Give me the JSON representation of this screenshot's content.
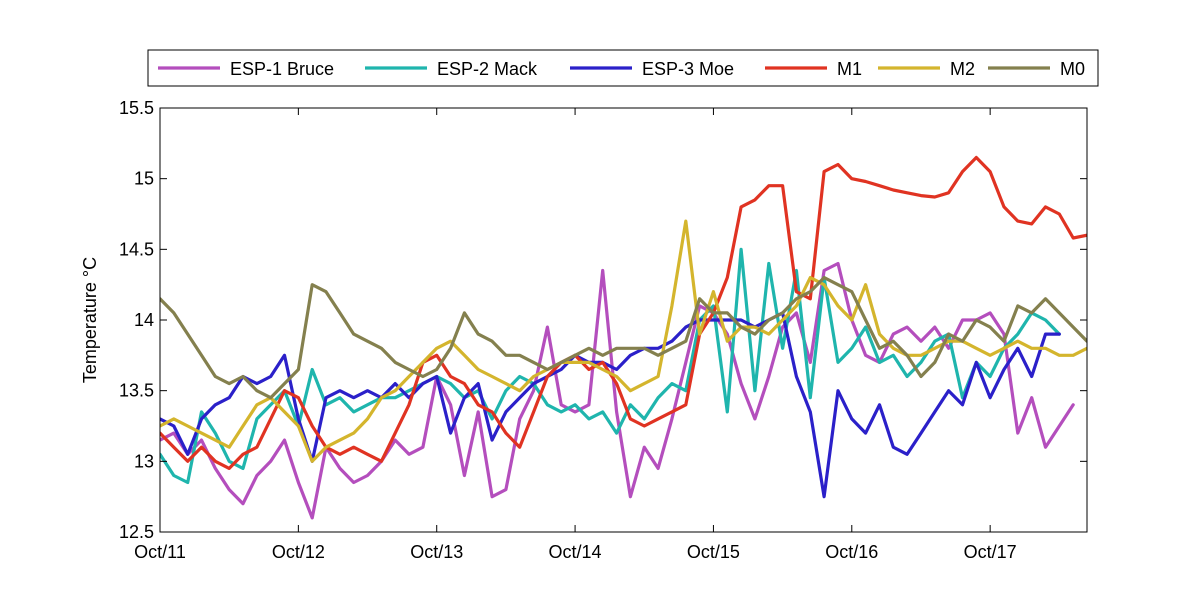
{
  "chart_data": {
    "type": "line",
    "ylabel": "Temperature °C",
    "ylim": [
      12.5,
      15.5
    ],
    "yticks": [
      "12.5",
      "13",
      "13.5",
      "14",
      "14.5",
      "15",
      "15.5"
    ],
    "x_range_days": [
      0,
      6.7
    ],
    "xtick_labels": [
      "Oct/11",
      "Oct/12",
      "Oct/13",
      "Oct/14",
      "Oct/15",
      "Oct/16",
      "Oct/17"
    ],
    "grid": false,
    "legend_position": "top",
    "series": [
      {
        "name": "ESP-1 Bruce",
        "color": "#b44ebd",
        "x": [
          0,
          0.1,
          0.2,
          0.3,
          0.4,
          0.5,
          0.6,
          0.7,
          0.8,
          0.9,
          1.0,
          1.1,
          1.2,
          1.3,
          1.4,
          1.5,
          1.6,
          1.7,
          1.8,
          1.9,
          2.0,
          2.1,
          2.2,
          2.3,
          2.4,
          2.5,
          2.6,
          2.7,
          2.8,
          2.9,
          3.0,
          3.1,
          3.2,
          3.3,
          3.4,
          3.5,
          3.6,
          3.7,
          3.8,
          3.9,
          4.0,
          4.1,
          4.2,
          4.3,
          4.4,
          4.5,
          4.6,
          4.7,
          4.8,
          4.9,
          5.0,
          5.1,
          5.2,
          5.3,
          5.4,
          5.5,
          5.6,
          5.7,
          5.8,
          5.9,
          6.0,
          6.1,
          6.2,
          6.3,
          6.4,
          6.6
        ],
        "y": [
          13.15,
          13.2,
          13.05,
          13.15,
          12.95,
          12.8,
          12.7,
          12.9,
          13.0,
          13.15,
          12.85,
          12.6,
          13.1,
          12.95,
          12.85,
          12.9,
          13.0,
          13.15,
          13.05,
          13.1,
          13.6,
          13.4,
          12.9,
          13.35,
          12.75,
          12.8,
          13.3,
          13.5,
          13.95,
          13.4,
          13.35,
          13.4,
          14.35,
          13.35,
          12.75,
          13.1,
          12.95,
          13.3,
          13.7,
          14.1,
          14.05,
          13.9,
          13.55,
          13.3,
          13.6,
          13.95,
          14.05,
          13.7,
          14.35,
          14.4,
          14.0,
          13.75,
          13.7,
          13.9,
          13.95,
          13.85,
          13.95,
          13.8,
          14.0,
          14.0,
          14.05,
          13.9,
          13.2,
          13.45,
          13.1,
          13.4
        ]
      },
      {
        "name": "ESP-2 Mack",
        "color": "#1fb5ad",
        "x": [
          0,
          0.1,
          0.2,
          0.3,
          0.4,
          0.5,
          0.6,
          0.7,
          0.8,
          0.9,
          1.0,
          1.1,
          1.2,
          1.3,
          1.4,
          1.5,
          1.6,
          1.7,
          1.8,
          1.9,
          2.0,
          2.1,
          2.2,
          2.3,
          2.4,
          2.5,
          2.6,
          2.7,
          2.8,
          2.9,
          3.0,
          3.1,
          3.2,
          3.3,
          3.4,
          3.5,
          3.6,
          3.7,
          3.8,
          3.9,
          4.0,
          4.1,
          4.2,
          4.3,
          4.4,
          4.5,
          4.6,
          4.7,
          4.8,
          4.9,
          5.0,
          5.1,
          5.2,
          5.3,
          5.4,
          5.5,
          5.6,
          5.7,
          5.8,
          5.9,
          6.0,
          6.1,
          6.2,
          6.3,
          6.4,
          6.5
        ],
        "y": [
          13.05,
          12.9,
          12.85,
          13.35,
          13.2,
          13.0,
          12.95,
          13.3,
          13.4,
          13.5,
          13.25,
          13.65,
          13.4,
          13.45,
          13.35,
          13.4,
          13.45,
          13.45,
          13.5,
          13.55,
          13.6,
          13.55,
          13.45,
          13.5,
          13.3,
          13.5,
          13.6,
          13.55,
          13.4,
          13.35,
          13.4,
          13.3,
          13.35,
          13.2,
          13.4,
          13.3,
          13.45,
          13.55,
          13.5,
          14.0,
          14.1,
          13.35,
          14.5,
          13.5,
          14.4,
          13.8,
          14.35,
          13.45,
          14.3,
          13.7,
          13.8,
          13.95,
          13.7,
          13.75,
          13.6,
          13.7,
          13.85,
          13.9,
          13.45,
          13.7,
          13.6,
          13.8,
          13.9,
          14.05,
          14.0,
          13.9
        ]
      },
      {
        "name": "ESP-3 Moe",
        "color": "#2b20c9",
        "x": [
          0,
          0.1,
          0.2,
          0.3,
          0.4,
          0.5,
          0.6,
          0.7,
          0.8,
          0.9,
          1.0,
          1.1,
          1.2,
          1.3,
          1.4,
          1.5,
          1.6,
          1.7,
          1.8,
          1.9,
          2.0,
          2.1,
          2.2,
          2.3,
          2.4,
          2.5,
          2.6,
          2.7,
          2.8,
          2.9,
          3.0,
          3.1,
          3.2,
          3.3,
          3.4,
          3.5,
          3.6,
          3.7,
          3.8,
          3.9,
          4.0,
          4.1,
          4.2,
          4.3,
          4.4,
          4.5,
          4.6,
          4.7,
          4.8,
          4.9,
          5.0,
          5.1,
          5.2,
          5.3,
          5.4,
          5.5,
          5.6,
          5.7,
          5.8,
          5.9,
          6.0,
          6.1,
          6.2,
          6.3,
          6.4,
          6.5
        ],
        "y": [
          13.3,
          13.25,
          13.05,
          13.3,
          13.4,
          13.45,
          13.6,
          13.55,
          13.6,
          13.75,
          13.3,
          13.0,
          13.45,
          13.5,
          13.45,
          13.5,
          13.45,
          13.55,
          13.45,
          13.55,
          13.6,
          13.2,
          13.45,
          13.55,
          13.15,
          13.35,
          13.45,
          13.55,
          13.6,
          13.65,
          13.75,
          13.7,
          13.7,
          13.65,
          13.75,
          13.8,
          13.8,
          13.85,
          13.95,
          14.0,
          14.0,
          14.0,
          14.0,
          13.95,
          14.0,
          14.05,
          13.6,
          13.35,
          12.75,
          13.5,
          13.3,
          13.2,
          13.4,
          13.1,
          13.05,
          13.2,
          13.35,
          13.5,
          13.4,
          13.7,
          13.45,
          13.65,
          13.8,
          13.6,
          13.9,
          13.9
        ]
      },
      {
        "name": "M1",
        "color": "#e03322",
        "x": [
          0,
          0.1,
          0.2,
          0.3,
          0.4,
          0.5,
          0.6,
          0.7,
          0.8,
          0.9,
          1.0,
          1.1,
          1.2,
          1.3,
          1.4,
          1.5,
          1.6,
          1.7,
          1.8,
          1.9,
          2.0,
          2.1,
          2.2,
          2.3,
          2.4,
          2.5,
          2.6,
          2.7,
          2.8,
          2.9,
          3.0,
          3.1,
          3.2,
          3.3,
          3.4,
          3.5,
          3.6,
          3.7,
          3.8,
          3.9,
          4.0,
          4.1,
          4.2,
          4.3,
          4.4,
          4.5,
          4.6,
          4.7,
          4.8,
          4.9,
          5.0,
          5.1,
          5.2,
          5.3,
          5.4,
          5.5,
          5.6,
          5.7,
          5.8,
          5.9,
          6.0,
          6.1,
          6.2,
          6.3,
          6.4,
          6.5,
          6.6,
          6.7
        ],
        "y": [
          13.2,
          13.1,
          13.0,
          13.1,
          13.0,
          12.95,
          13.05,
          13.1,
          13.3,
          13.5,
          13.45,
          13.25,
          13.1,
          13.05,
          13.1,
          13.05,
          13.0,
          13.2,
          13.4,
          13.7,
          13.75,
          13.6,
          13.55,
          13.4,
          13.35,
          13.2,
          13.1,
          13.35,
          13.6,
          13.7,
          13.75,
          13.65,
          13.7,
          13.55,
          13.3,
          13.25,
          13.3,
          13.35,
          13.4,
          13.9,
          14.05,
          14.3,
          14.8,
          14.85,
          14.95,
          14.95,
          14.2,
          14.15,
          15.05,
          15.1,
          15.0,
          14.98,
          14.95,
          14.92,
          14.9,
          14.88,
          14.87,
          14.9,
          15.05,
          15.15,
          15.05,
          14.8,
          14.7,
          14.68,
          14.8,
          14.75,
          14.58,
          14.6
        ]
      },
      {
        "name": "M2",
        "color": "#d4b52d",
        "x": [
          0,
          0.1,
          0.2,
          0.3,
          0.4,
          0.5,
          0.6,
          0.7,
          0.8,
          0.9,
          1.0,
          1.1,
          1.2,
          1.3,
          1.4,
          1.5,
          1.6,
          1.7,
          1.8,
          1.9,
          2.0,
          2.1,
          2.2,
          2.3,
          2.4,
          2.5,
          2.6,
          2.7,
          2.8,
          2.9,
          3.0,
          3.1,
          3.2,
          3.3,
          3.4,
          3.5,
          3.6,
          3.7,
          3.8,
          3.9,
          4.0,
          4.1,
          4.2,
          4.3,
          4.4,
          4.5,
          4.6,
          4.7,
          4.8,
          4.9,
          5.0,
          5.1,
          5.2,
          5.3,
          5.4,
          5.5,
          5.6,
          5.7,
          5.8,
          5.9,
          6.0,
          6.1,
          6.2,
          6.3,
          6.4,
          6.5,
          6.6,
          6.7
        ],
        "y": [
          13.25,
          13.3,
          13.25,
          13.2,
          13.15,
          13.1,
          13.25,
          13.4,
          13.45,
          13.35,
          13.25,
          13.0,
          13.1,
          13.15,
          13.2,
          13.3,
          13.45,
          13.5,
          13.6,
          13.7,
          13.8,
          13.85,
          13.75,
          13.65,
          13.6,
          13.55,
          13.5,
          13.6,
          13.65,
          13.7,
          13.7,
          13.7,
          13.65,
          13.6,
          13.5,
          13.55,
          13.6,
          14.1,
          14.7,
          13.9,
          14.2,
          13.85,
          13.95,
          13.95,
          13.9,
          14.0,
          14.1,
          14.3,
          14.25,
          14.1,
          14.0,
          14.25,
          13.9,
          13.8,
          13.75,
          13.75,
          13.8,
          13.85,
          13.85,
          13.8,
          13.75,
          13.8,
          13.85,
          13.8,
          13.8,
          13.75,
          13.75,
          13.8
        ]
      },
      {
        "name": "M0",
        "color": "#84804e",
        "x": [
          0,
          0.1,
          0.2,
          0.3,
          0.4,
          0.5,
          0.6,
          0.7,
          0.8,
          0.9,
          1.0,
          1.1,
          1.2,
          1.3,
          1.4,
          1.5,
          1.6,
          1.7,
          1.8,
          1.9,
          2.0,
          2.1,
          2.2,
          2.3,
          2.4,
          2.5,
          2.6,
          2.7,
          2.8,
          2.9,
          3.0,
          3.1,
          3.2,
          3.3,
          3.4,
          3.5,
          3.6,
          3.7,
          3.8,
          3.9,
          4.0,
          4.1,
          4.2,
          4.3,
          4.4,
          4.5,
          4.6,
          4.7,
          4.8,
          4.9,
          5.0,
          5.1,
          5.2,
          5.3,
          5.4,
          5.5,
          5.6,
          5.7,
          5.8,
          5.9,
          6.0,
          6.1,
          6.2,
          6.3,
          6.4,
          6.5,
          6.6,
          6.7
        ],
        "y": [
          14.15,
          14.05,
          13.9,
          13.75,
          13.6,
          13.55,
          13.6,
          13.5,
          13.45,
          13.55,
          13.65,
          14.25,
          14.2,
          14.05,
          13.9,
          13.85,
          13.8,
          13.7,
          13.65,
          13.6,
          13.65,
          13.8,
          14.05,
          13.9,
          13.85,
          13.75,
          13.75,
          13.7,
          13.65,
          13.7,
          13.75,
          13.8,
          13.75,
          13.8,
          13.8,
          13.8,
          13.75,
          13.8,
          13.85,
          14.15,
          14.05,
          14.05,
          13.95,
          13.9,
          14.0,
          14.05,
          14.15,
          14.2,
          14.3,
          14.25,
          14.2,
          14.0,
          13.8,
          13.85,
          13.75,
          13.6,
          13.7,
          13.9,
          13.85,
          14.0,
          13.95,
          13.85,
          14.1,
          14.05,
          14.15,
          14.05,
          13.95,
          13.85
        ]
      }
    ]
  }
}
